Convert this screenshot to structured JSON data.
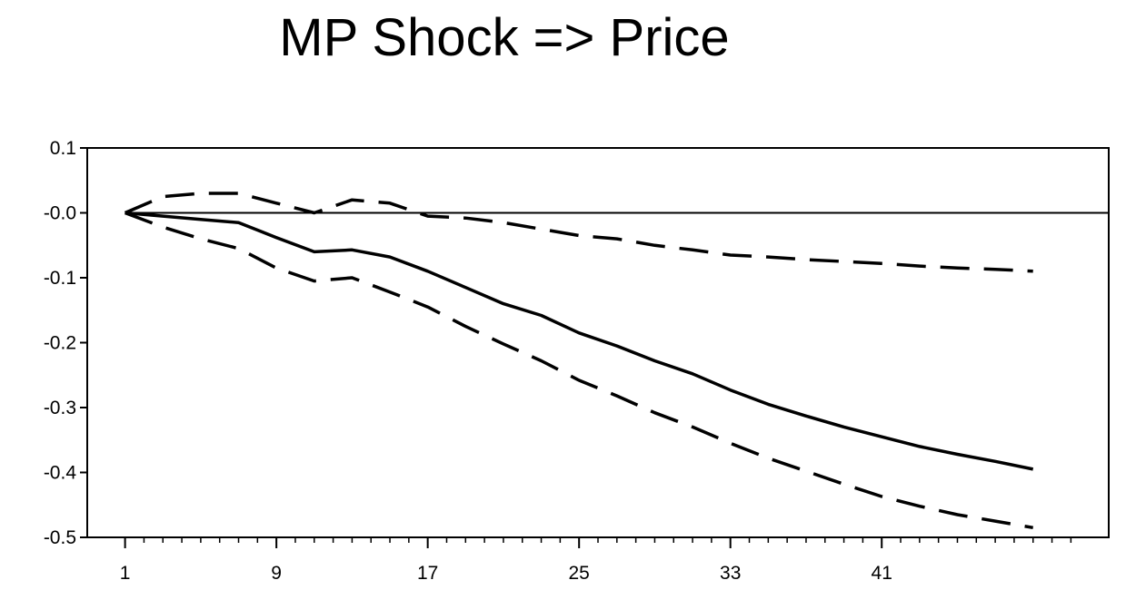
{
  "chart_data": {
    "type": "line",
    "title": "MP Shock => Price",
    "xlabel": "",
    "ylabel": "",
    "xlim": [
      -1,
      53
    ],
    "ylim": [
      -0.5,
      0.1
    ],
    "x_ticks": [
      1,
      9,
      17,
      25,
      33,
      41
    ],
    "y_ticks": [
      0.1,
      0.0,
      -0.1,
      -0.2,
      -0.3,
      -0.4,
      -0.5
    ],
    "y_tick_labels": [
      "0.1",
      "-0.0",
      "-0.1",
      "-0.2",
      "-0.3",
      "-0.4",
      "-0.5"
    ],
    "zero_line": 0.0,
    "grid": false,
    "series": [
      {
        "role": "estimate",
        "style": "solid",
        "x": [
          1,
          3,
          5,
          7,
          9,
          11,
          13,
          15,
          17,
          19,
          21,
          23,
          25,
          27,
          29,
          31,
          33,
          35,
          37,
          39,
          41,
          43,
          45,
          47,
          49
        ],
        "y": [
          0.0,
          -0.005,
          -0.01,
          -0.015,
          -0.038,
          -0.06,
          -0.057,
          -0.068,
          -0.09,
          -0.115,
          -0.14,
          -0.158,
          -0.185,
          -0.205,
          -0.228,
          -0.248,
          -0.273,
          -0.295,
          -0.313,
          -0.33,
          -0.345,
          -0.36,
          -0.372,
          -0.383,
          -0.395
        ]
      },
      {
        "role": "upper band",
        "style": "dashed",
        "x": [
          1,
          3,
          5,
          7,
          9,
          11,
          13,
          15,
          17,
          19,
          21,
          23,
          25,
          27,
          29,
          31,
          33,
          35,
          37,
          39,
          41,
          43,
          45,
          47,
          49
        ],
        "y": [
          0.0,
          0.025,
          0.03,
          0.03,
          0.015,
          0.0,
          0.02,
          0.015,
          -0.005,
          -0.008,
          -0.015,
          -0.025,
          -0.035,
          -0.04,
          -0.05,
          -0.057,
          -0.065,
          -0.068,
          -0.072,
          -0.075,
          -0.078,
          -0.082,
          -0.085,
          -0.087,
          -0.09
        ]
      },
      {
        "role": "lower band",
        "style": "dashed",
        "x": [
          1,
          3,
          5,
          7,
          9,
          11,
          13,
          15,
          17,
          19,
          21,
          23,
          25,
          27,
          29,
          31,
          33,
          35,
          37,
          39,
          41,
          43,
          45,
          47,
          49
        ],
        "y": [
          0.0,
          -0.022,
          -0.04,
          -0.055,
          -0.085,
          -0.105,
          -0.1,
          -0.122,
          -0.145,
          -0.175,
          -0.202,
          -0.228,
          -0.258,
          -0.282,
          -0.308,
          -0.33,
          -0.355,
          -0.378,
          -0.398,
          -0.418,
          -0.437,
          -0.452,
          -0.465,
          -0.475,
          -0.485
        ]
      }
    ]
  }
}
